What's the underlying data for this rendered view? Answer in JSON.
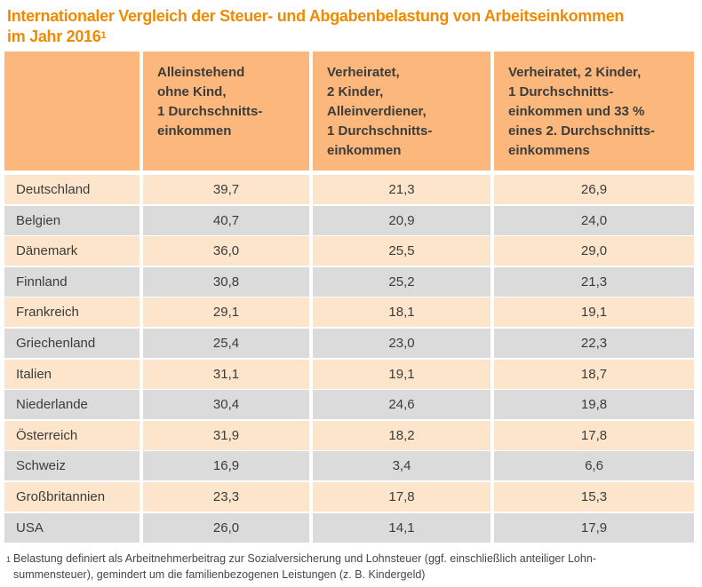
{
  "title": {
    "line1": "Internationaler Vergleich der Steuer- und Abgabenbelastung von Arbeitseinkommen",
    "line2": "im Jahr 2016",
    "superscript": "1"
  },
  "table": {
    "columns": [
      "",
      "Alleinstehend\nohne Kind,\n1 Durchschnitts-\neinkommen",
      "Verheiratet,\n2 Kinder,\nAlleinverdiener,\n1 Durchschnitts-\neinkommen",
      "Verheiratet, 2 Kinder,\n1 Durchschnitts-\neinkommen und 33 %\neines 2. Durchschnitts-\neinkommens"
    ],
    "rows": [
      {
        "country": "Deutschland",
        "values": [
          "39,7",
          "21,3",
          "26,9"
        ]
      },
      {
        "country": "Belgien",
        "values": [
          "40,7",
          "20,9",
          "24,0"
        ]
      },
      {
        "country": "Dänemark",
        "values": [
          "36,0",
          "25,5",
          "29,0"
        ]
      },
      {
        "country": "Finnland",
        "values": [
          "30,8",
          "25,2",
          "21,3"
        ]
      },
      {
        "country": "Frankreich",
        "values": [
          "29,1",
          "18,1",
          "19,1"
        ]
      },
      {
        "country": "Griechenland",
        "values": [
          "25,4",
          "23,0",
          "22,3"
        ]
      },
      {
        "country": "Italien",
        "values": [
          "31,1",
          "19,1",
          "18,7"
        ]
      },
      {
        "country": "Niederlande",
        "values": [
          "30,4",
          "24,6",
          "19,8"
        ]
      },
      {
        "country": "Österreich",
        "values": [
          "31,9",
          "18,2",
          "17,8"
        ]
      },
      {
        "country": "Schweiz",
        "values": [
          "16,9",
          "3,4",
          "6,6"
        ]
      },
      {
        "country": "Großbritannien",
        "values": [
          "23,3",
          "17,8",
          "15,3"
        ]
      },
      {
        "country": "USA",
        "values": [
          "26,0",
          "14,1",
          "17,9"
        ]
      }
    ]
  },
  "footnote": {
    "superscript": "1",
    "text": "Belastung definiert als Arbeitnehmerbeitrag zur Sozialversicherung und Lohnsteuer (ggf. einschließlich anteiliger Lohn-\nsummensteuer), gemindert um die familienbezogenen Leistungen (z. B. Kindergeld)"
  },
  "colors": {
    "title_orange": "#f18a00",
    "header_bg": "#fbb77c",
    "row_peach": "#fce5cb",
    "row_gray": "#dbdbdb",
    "text": "#3c3c3b"
  },
  "chart_data": {
    "type": "table",
    "title": "Internationaler Vergleich der Steuer- und Abgabenbelastung von Arbeitseinkommen im Jahr 2016",
    "categories": [
      "Deutschland",
      "Belgien",
      "Dänemark",
      "Finnland",
      "Frankreich",
      "Griechenland",
      "Italien",
      "Niederlande",
      "Österreich",
      "Schweiz",
      "Großbritannien",
      "USA"
    ],
    "series": [
      {
        "name": "Alleinstehend ohne Kind, 1 Durchschnittseinkommen",
        "values": [
          39.7,
          40.7,
          36.0,
          30.8,
          29.1,
          25.4,
          31.1,
          30.4,
          31.9,
          16.9,
          23.3,
          26.0
        ]
      },
      {
        "name": "Verheiratet, 2 Kinder, Alleinverdiener, 1 Durchschnittseinkommen",
        "values": [
          21.3,
          20.9,
          25.5,
          25.2,
          18.1,
          23.0,
          19.1,
          24.6,
          18.2,
          3.4,
          17.8,
          14.1
        ]
      },
      {
        "name": "Verheiratet, 2 Kinder, 1 Durchschnittseinkommen und 33 % eines 2. Durchschnittseinkommens",
        "values": [
          26.9,
          24.0,
          29.0,
          21.3,
          19.1,
          22.3,
          18.7,
          19.8,
          17.8,
          6.6,
          15.3,
          17.9
        ]
      }
    ],
    "footnote": "Belastung definiert als Arbeitnehmerbeitrag zur Sozialversicherung und Lohnsteuer (ggf. einschließlich anteiliger Lohnsummensteuer), gemindert um die familienbezogenen Leistungen (z. B. Kindergeld)"
  }
}
